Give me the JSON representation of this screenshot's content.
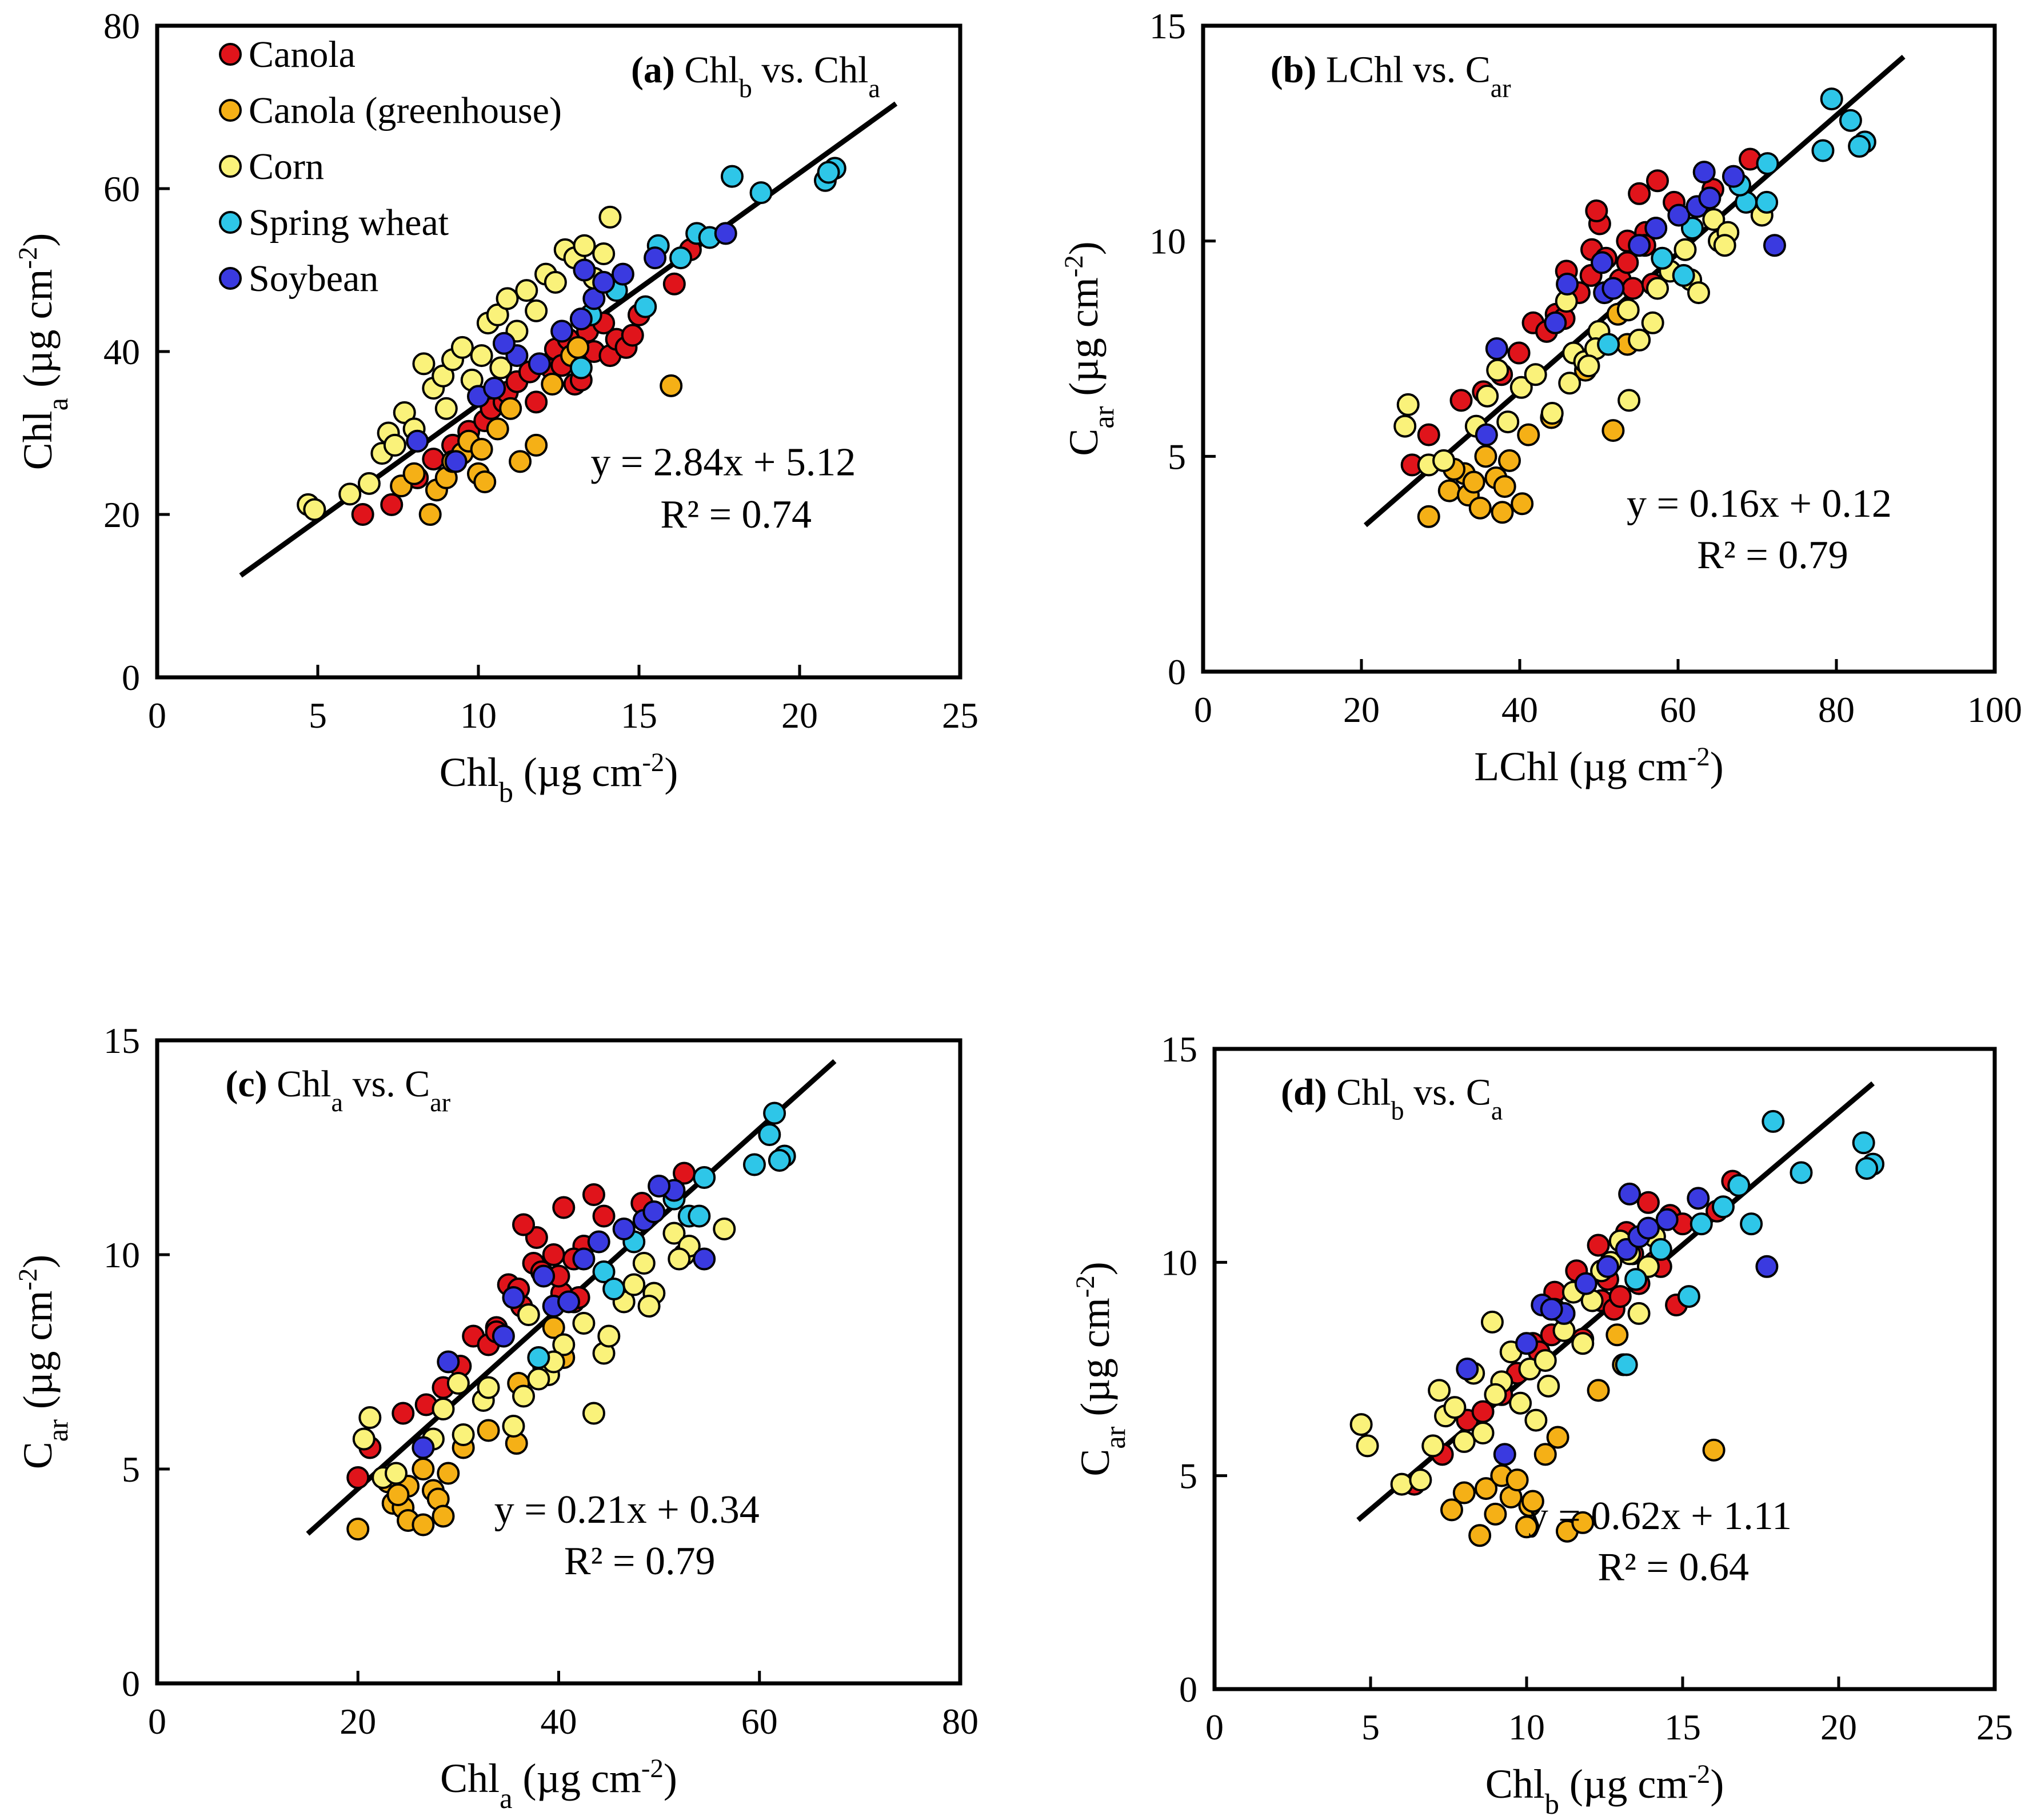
{
  "colors": {
    "canola": "#e0141b",
    "canola_greenhouse": "#f5b016",
    "corn": "#faf27a",
    "spring_wheat": "#2ec6e8",
    "soybean": "#3a3ae0",
    "marker_edge": "#000000",
    "regression_line": "#000000"
  },
  "legend": {
    "placement": "top-left",
    "entries": [
      {
        "key": "canola",
        "label": "Canola"
      },
      {
        "key": "canola_greenhouse",
        "label": "Canola (greenhouse)"
      },
      {
        "key": "corn",
        "label": "Corn"
      },
      {
        "key": "spring_wheat",
        "label": "Spring wheat"
      },
      {
        "key": "soybean",
        "label": "Soybean"
      }
    ]
  },
  "chart_data": [
    {
      "id": "a",
      "type": "scatter",
      "panel_label": "(a)",
      "title": {
        "pre": "Chl",
        "pre_sub": "b",
        "mid": " vs. Chl",
        "post_sub": "a"
      },
      "xlabel": {
        "main": "Chl",
        "sub": "b",
        "rest": " (µg cm",
        "sup": "-2",
        "close": ")"
      },
      "ylabel": {
        "main": "Chl",
        "sub": "a",
        "rest": " (µg cm",
        "sup": "-2",
        "close": ")"
      },
      "xlim": [
        0,
        25
      ],
      "ylim": [
        0,
        80
      ],
      "xticks": [
        0,
        5,
        10,
        15,
        20,
        25
      ],
      "yticks": [
        0,
        20,
        40,
        60,
        80
      ],
      "equation": "y = 2.84x + 5.12",
      "r2": "R² = 0.74",
      "fit": {
        "slope": 2.84,
        "intercept": 5.12,
        "x_range": [
          2.6,
          23
        ]
      },
      "grid": false
    },
    {
      "id": "b",
      "type": "scatter",
      "panel_label": "(b)",
      "title": {
        "pre": "LChl",
        "pre_sub": "",
        "mid": " vs. C",
        "post_sub": "ar"
      },
      "xlabel": {
        "main": "LChl",
        "sub": "",
        "rest": " (µg cm",
        "sup": "-2",
        "close": ")"
      },
      "ylabel": {
        "main": "C",
        "sub": "ar",
        "rest": "  (µg cm",
        "sup": "-2",
        "close": ")"
      },
      "xlim": [
        0,
        100
      ],
      "ylim": [
        0,
        15
      ],
      "xticks": [
        0,
        20,
        40,
        60,
        80,
        100
      ],
      "yticks": [
        0,
        5,
        10,
        15
      ],
      "equation": "y = 0.16x + 0.12",
      "r2": "R² = 0.79",
      "fit": {
        "slope": 0.16,
        "intercept": 0.12,
        "x_range": [
          20.5,
          88.5
        ]
      },
      "grid": false
    },
    {
      "id": "c",
      "type": "scatter",
      "panel_label": "(c)",
      "title": {
        "pre": "Chl",
        "pre_sub": "a",
        "mid": " vs. C",
        "post_sub": "ar"
      },
      "xlabel": {
        "main": "Chl",
        "sub": "a",
        "rest": "  (µg cm",
        "sup": "-2",
        "close": ")"
      },
      "ylabel": {
        "main": "C",
        "sub": "ar",
        "rest": "  (µg cm",
        "sup": "-2",
        "close": ")"
      },
      "xlim": [
        0,
        80
      ],
      "ylim": [
        0,
        15
      ],
      "xticks": [
        0,
        20,
        40,
        60,
        80
      ],
      "yticks": [
        0,
        5,
        10,
        15
      ],
      "equation": "y = 0.21x + 0.34",
      "r2": "R² = 0.79",
      "fit": {
        "slope": 0.21,
        "intercept": 0.34,
        "x_range": [
          15,
          67.5
        ]
      },
      "grid": false
    },
    {
      "id": "d",
      "type": "scatter",
      "panel_label": "(d)",
      "title": {
        "pre": "Chl",
        "pre_sub": "b",
        "mid": " vs. C",
        "post_sub": "a"
      },
      "xlabel": {
        "main": "Chl",
        "sub": "b",
        "rest": "  (µg cm",
        "sup": "-2",
        "close": ")"
      },
      "ylabel": {
        "main": "C",
        "sub": "ar",
        "rest": "  (µg cm",
        "sup": "-2",
        "close": ")"
      },
      "xlim": [
        0,
        25
      ],
      "ylim": [
        0,
        15
      ],
      "xticks": [
        0,
        5,
        10,
        15,
        20,
        25
      ],
      "yticks": [
        0,
        5,
        10,
        15
      ],
      "equation": "y = 0.62x + 1.11",
      "r2": "R² = 0.64",
      "fit": {
        "slope": 0.62,
        "intercept": 1.11,
        "x_range": [
          4.6,
          21.1
        ]
      },
      "grid": false
    }
  ],
  "samples": [
    {
      "crop": "canola",
      "chlb": 6.4,
      "chla": 20.0,
      "car": 4.8
    },
    {
      "crop": "canola",
      "chlb": 7.3,
      "chla": 21.2,
      "car": 5.5
    },
    {
      "crop": "canola",
      "chlb": 8.1,
      "chla": 24.5,
      "car": 6.3
    },
    {
      "crop": "canola",
      "chlb": 8.6,
      "chla": 26.8,
      "car": 6.5
    },
    {
      "crop": "canola",
      "chlb": 9.2,
      "chla": 28.5,
      "car": 6.9
    },
    {
      "crop": "canola",
      "chlb": 9.7,
      "chla": 30.2,
      "car": 7.4
    },
    {
      "crop": "canola",
      "chlb": 10.2,
      "chla": 31.5,
      "car": 8.1
    },
    {
      "crop": "canola",
      "chlb": 10.4,
      "chla": 33.0,
      "car": 7.9
    },
    {
      "crop": "canola",
      "chlb": 10.8,
      "chla": 33.8,
      "car": 8.3
    },
    {
      "crop": "canola",
      "chlb": 10.9,
      "chla": 35.0,
      "car": 9.3
    },
    {
      "crop": "canola",
      "chlb": 11.2,
      "chla": 36.3,
      "car": 8.8
    },
    {
      "crop": "canola",
      "chlb": 11.6,
      "chla": 37.5,
      "car": 9.8
    },
    {
      "crop": "canola",
      "chlb": 11.8,
      "chla": 33.8,
      "car": 8.2
    },
    {
      "crop": "canola",
      "chlb": 12.3,
      "chla": 37.8,
      "car": 10.4
    },
    {
      "crop": "canola",
      "chlb": 12.4,
      "chla": 40.3,
      "car": 9.1
    },
    {
      "crop": "canola",
      "chlb": 12.6,
      "chla": 38.3,
      "car": 9.6
    },
    {
      "crop": "canola",
      "chlb": 12.8,
      "chla": 41.5,
      "car": 8.9
    },
    {
      "crop": "canola",
      "chlb": 13.0,
      "chla": 36.0,
      "car": 9.2
    },
    {
      "crop": "canola",
      "chlb": 13.2,
      "chla": 36.5,
      "car": 10.7
    },
    {
      "crop": "canola",
      "chlb": 13.4,
      "chla": 42.5,
      "car": 10.2
    },
    {
      "crop": "canola",
      "chlb": 13.6,
      "chla": 40.0,
      "car": 9.5
    },
    {
      "crop": "canola",
      "chlb": 13.9,
      "chla": 43.5,
      "car": 11.4
    },
    {
      "crop": "canola",
      "chlb": 14.1,
      "chla": 39.5,
      "car": 10.0
    },
    {
      "crop": "canola",
      "chlb": 14.3,
      "chla": 41.5,
      "car": 9.9
    },
    {
      "crop": "canola",
      "chlb": 14.6,
      "chla": 40.5,
      "car": 11.1
    },
    {
      "crop": "canola",
      "chlb": 14.8,
      "chla": 42.0,
      "car": 9.0
    },
    {
      "crop": "canola",
      "chlb": 15.0,
      "chla": 44.5,
      "car": 10.9
    },
    {
      "crop": "canola",
      "chlb": 16.1,
      "chla": 48.3,
      "car": 11.2
    },
    {
      "crop": "canola",
      "chlb": 16.6,
      "chla": 52.5,
      "car": 11.9
    },
    {
      "crop": "canola_greenhouse",
      "chlb": 7.6,
      "chla": 23.5,
      "car": 4.2
    },
    {
      "crop": "canola_greenhouse",
      "chlb": 8.0,
      "chla": 25.0,
      "car": 4.6
    },
    {
      "crop": "canola_greenhouse",
      "chlb": 8.5,
      "chla": 20.0,
      "car": 3.6
    },
    {
      "crop": "canola_greenhouse",
      "chlb": 8.7,
      "chla": 23.0,
      "car": 4.7
    },
    {
      "crop": "canola_greenhouse",
      "chlb": 9.0,
      "chla": 24.5,
      "car": 4.1
    },
    {
      "crop": "canola_greenhouse",
      "chlb": 9.2,
      "chla": 26.5,
      "car": 5.0
    },
    {
      "crop": "canola_greenhouse",
      "chlb": 9.5,
      "chla": 27.5,
      "car": 4.5
    },
    {
      "crop": "canola_greenhouse",
      "chlb": 9.7,
      "chla": 29.0,
      "car": 4.9
    },
    {
      "crop": "canola_greenhouse",
      "chlb": 10.0,
      "chla": 25.0,
      "car": 3.8
    },
    {
      "crop": "canola_greenhouse",
      "chlb": 10.1,
      "chla": 28.0,
      "car": 4.3
    },
    {
      "crop": "canola_greenhouse",
      "chlb": 10.2,
      "chla": 24.0,
      "car": 4.4
    },
    {
      "crop": "canola_greenhouse",
      "chlb": 10.6,
      "chla": 30.5,
      "car": 5.5
    },
    {
      "crop": "canola_greenhouse",
      "chlb": 11.0,
      "chla": 33.0,
      "car": 5.9
    },
    {
      "crop": "canola_greenhouse",
      "chlb": 11.3,
      "chla": 26.5,
      "car": 3.7
    },
    {
      "crop": "canola_greenhouse",
      "chlb": 11.8,
      "chla": 28.5,
      "car": 3.9
    },
    {
      "crop": "canola_greenhouse",
      "chlb": 12.3,
      "chla": 36.0,
      "car": 7.0
    },
    {
      "crop": "canola_greenhouse",
      "chlb": 12.9,
      "chla": 39.5,
      "car": 8.3
    },
    {
      "crop": "canola_greenhouse",
      "chlb": 13.1,
      "chla": 40.5,
      "car": 7.6
    },
    {
      "crop": "canola_greenhouse",
      "chlb": 16.0,
      "chla": 35.8,
      "car": 5.6
    },
    {
      "crop": "corn",
      "chlb": 4.7,
      "chla": 21.2,
      "car": 6.2
    },
    {
      "crop": "corn",
      "chlb": 4.9,
      "chla": 20.6,
      "car": 5.7
    },
    {
      "crop": "corn",
      "chlb": 6.0,
      "chla": 22.5,
      "car": 4.8
    },
    {
      "crop": "corn",
      "chlb": 6.6,
      "chla": 23.8,
      "car": 4.9
    },
    {
      "crop": "corn",
      "chlb": 7.0,
      "chla": 27.5,
      "car": 5.7
    },
    {
      "crop": "corn",
      "chlb": 7.2,
      "chla": 30.0,
      "car": 7.0
    },
    {
      "crop": "corn",
      "chlb": 7.4,
      "chla": 28.5,
      "car": 6.4
    },
    {
      "crop": "corn",
      "chlb": 7.7,
      "chla": 32.5,
      "car": 6.6
    },
    {
      "crop": "corn",
      "chlb": 8.0,
      "chla": 30.5,
      "car": 5.8
    },
    {
      "crop": "corn",
      "chlb": 8.3,
      "chla": 38.5,
      "car": 7.4
    },
    {
      "crop": "corn",
      "chlb": 8.6,
      "chla": 35.5,
      "car": 6.0
    },
    {
      "crop": "corn",
      "chlb": 8.9,
      "chla": 37.0,
      "car": 8.6
    },
    {
      "crop": "corn",
      "chlb": 9.2,
      "chla": 39.0,
      "car": 7.2
    },
    {
      "crop": "corn",
      "chlb": 9.5,
      "chla": 40.5,
      "car": 7.9
    },
    {
      "crop": "corn",
      "chlb": 9.8,
      "chla": 36.5,
      "car": 6.7
    },
    {
      "crop": "corn",
      "chlb": 10.1,
      "chla": 39.5,
      "car": 7.5
    },
    {
      "crop": "corn",
      "chlb": 10.3,
      "chla": 43.5,
      "car": 6.3
    },
    {
      "crop": "corn",
      "chlb": 10.6,
      "chla": 44.5,
      "car": 7.7
    },
    {
      "crop": "corn",
      "chlb": 10.9,
      "chla": 46.5,
      "car": 8.9
    },
    {
      "crop": "corn",
      "chlb": 11.2,
      "chla": 42.5,
      "car": 8.4
    },
    {
      "crop": "corn",
      "chlb": 11.5,
      "chla": 47.5,
      "car": 9.3
    },
    {
      "crop": "corn",
      "chlb": 11.8,
      "chla": 45.0,
      "car": 8.1
    },
    {
      "crop": "corn",
      "chlb": 12.1,
      "chla": 49.5,
      "car": 9.1
    },
    {
      "crop": "corn",
      "chlb": 12.4,
      "chla": 48.5,
      "car": 9.8
    },
    {
      "crop": "corn",
      "chlb": 12.7,
      "chla": 52.5,
      "car": 10.0
    },
    {
      "crop": "corn",
      "chlb": 13.0,
      "chla": 51.5,
      "car": 10.5
    },
    {
      "crop": "corn",
      "chlb": 13.3,
      "chla": 53.0,
      "car": 10.2
    },
    {
      "crop": "corn",
      "chlb": 13.6,
      "chla": 49.0,
      "car": 8.8
    },
    {
      "crop": "corn",
      "chlb": 13.9,
      "chla": 52.0,
      "car": 9.9
    },
    {
      "crop": "corn",
      "chlb": 14.1,
      "chla": 56.5,
      "car": 10.6
    },
    {
      "crop": "corn",
      "chlb": 9.0,
      "chla": 33.0,
      "car": 6.9
    },
    {
      "crop": "corn",
      "chlb": 10.7,
      "chla": 38.0,
      "car": 7.1
    },
    {
      "crop": "spring_wheat",
      "chlb": 13.5,
      "chla": 44.5,
      "car": 9.6
    },
    {
      "crop": "spring_wheat",
      "chlb": 14.3,
      "chla": 47.5,
      "car": 10.3
    },
    {
      "crop": "spring_wheat",
      "chlb": 15.2,
      "chla": 45.5,
      "car": 9.2
    },
    {
      "crop": "spring_wheat",
      "chlb": 15.6,
      "chla": 53.0,
      "car": 10.9
    },
    {
      "crop": "spring_wheat",
      "chlb": 16.3,
      "chla": 51.5,
      "car": 11.3
    },
    {
      "crop": "spring_wheat",
      "chlb": 16.8,
      "chla": 54.5,
      "car": 11.8
    },
    {
      "crop": "spring_wheat",
      "chlb": 17.2,
      "chla": 54.0,
      "car": 10.9
    },
    {
      "crop": "spring_wheat",
      "chlb": 17.9,
      "chla": 61.5,
      "car": 13.3
    },
    {
      "crop": "spring_wheat",
      "chlb": 18.8,
      "chla": 59.5,
      "car": 12.1
    },
    {
      "crop": "spring_wheat",
      "chlb": 20.8,
      "chla": 61.0,
      "car": 12.8
    },
    {
      "crop": "spring_wheat",
      "chlb": 21.1,
      "chla": 62.5,
      "car": 12.3
    },
    {
      "crop": "spring_wheat",
      "chlb": 20.9,
      "chla": 62.0,
      "car": 12.2
    },
    {
      "crop": "spring_wheat",
      "chlb": 13.2,
      "chla": 38.0,
      "car": 7.6
    },
    {
      "crop": "soybean",
      "chlb": 9.3,
      "chla": 26.5,
      "car": 5.5
    },
    {
      "crop": "soybean",
      "chlb": 8.1,
      "chla": 29.0,
      "car": 7.5
    },
    {
      "crop": "soybean",
      "chlb": 10.0,
      "chla": 34.5,
      "car": 8.1
    },
    {
      "crop": "soybean",
      "chlb": 10.5,
      "chla": 35.5,
      "car": 9.0
    },
    {
      "crop": "soybean",
      "chlb": 11.2,
      "chla": 39.5,
      "car": 8.8
    },
    {
      "crop": "soybean",
      "chlb": 11.9,
      "chla": 38.5,
      "car": 9.5
    },
    {
      "crop": "soybean",
      "chlb": 12.6,
      "chla": 42.5,
      "car": 9.9
    },
    {
      "crop": "soybean",
      "chlb": 13.2,
      "chla": 44.0,
      "car": 10.3
    },
    {
      "crop": "soybean",
      "chlb": 13.6,
      "chla": 46.5,
      "car": 10.6
    },
    {
      "crop": "soybean",
      "chlb": 13.9,
      "chla": 48.5,
      "car": 10.8
    },
    {
      "crop": "soybean",
      "chlb": 14.5,
      "chla": 49.5,
      "car": 11.0
    },
    {
      "crop": "soybean",
      "chlb": 15.5,
      "chla": 51.5,
      "car": 11.5
    },
    {
      "crop": "soybean",
      "chlb": 17.7,
      "chla": 54.5,
      "car": 9.9
    },
    {
      "crop": "soybean",
      "chlb": 13.3,
      "chla": 50.0,
      "car": 11.6
    },
    {
      "crop": "soybean",
      "chlb": 10.8,
      "chla": 41.0,
      "car": 8.9
    }
  ]
}
